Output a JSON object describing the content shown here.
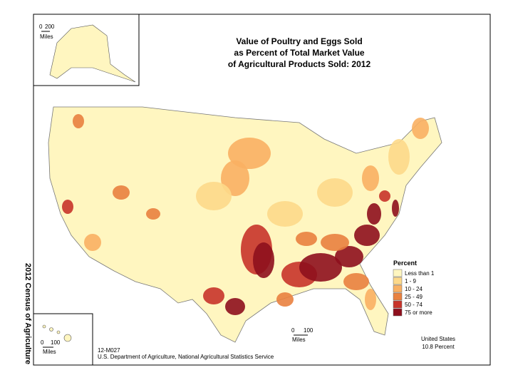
{
  "title": [
    "Value of Poultry and Eggs Sold",
    "as Percent of Total Market Value",
    "of Agricultural Products Sold:  2012"
  ],
  "legend": {
    "title": "Percent",
    "items": [
      {
        "label": "Less than 1",
        "color": "#fff6c0"
      },
      {
        "label": "1 - 9",
        "color": "#fdd98a"
      },
      {
        "label": "10 - 24",
        "color": "#f9b063"
      },
      {
        "label": "25 - 49",
        "color": "#e9813f"
      },
      {
        "label": "50 - 74",
        "color": "#c8342a"
      },
      {
        "label": "75 or more",
        "color": "#8e0f1d"
      }
    ]
  },
  "us_total": [
    "United States",
    "10.8 Percent"
  ],
  "scale_bars": {
    "alaska": {
      "ticks": [
        "0",
        "200"
      ],
      "unit": "Miles"
    },
    "hawaii": {
      "ticks": [
        "0",
        "100"
      ],
      "unit": "Miles"
    },
    "main": {
      "ticks": [
        "0",
        "100"
      ],
      "unit": "Miles"
    }
  },
  "map_id": "12-M027",
  "source": "U.S. Department of Agriculture, National Agricultural Statistics Service",
  "side_label": "2012 Census of Agriculture"
}
